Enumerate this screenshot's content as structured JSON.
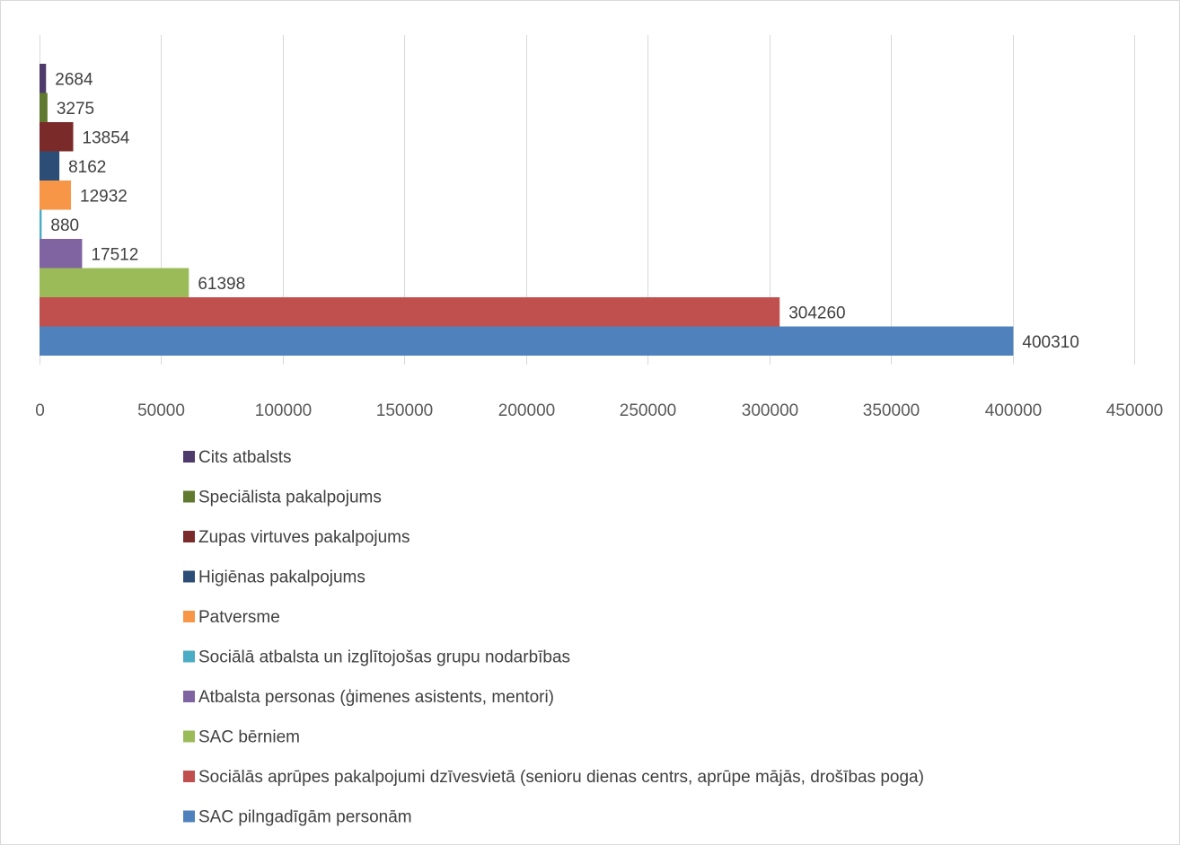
{
  "chart_data": {
    "type": "bar",
    "orientation": "horizontal",
    "grid": true,
    "legend_position": "bottom",
    "xlim": [
      0,
      450000
    ],
    "x_ticks": [
      0,
      50000,
      100000,
      150000,
      200000,
      250000,
      300000,
      350000,
      400000,
      450000
    ],
    "x_tick_labels": [
      "0",
      "50000",
      "100000",
      "150000",
      "200000",
      "250000",
      "300000",
      "350000",
      "400000",
      "450000"
    ],
    "series": [
      {
        "name": "Cits atbalsts",
        "value": 2684,
        "label": "2684",
        "color": "#4e3b6b"
      },
      {
        "name": "Speciālista pakalpojums",
        "value": 3275,
        "label": "3275",
        "color": "#5f7a2e"
      },
      {
        "name": "Zupas virtuves pakalpojums",
        "value": 13854,
        "label": "13854",
        "color": "#7b2a2a"
      },
      {
        "name": "Higiēnas pakalpojums",
        "value": 8162,
        "label": "8162",
        "color": "#2c4d75"
      },
      {
        "name": "Patversme",
        "value": 12932,
        "label": "12932",
        "color": "#f79646"
      },
      {
        "name": "Sociālā atbalsta un izglītojošas grupu nodarbības",
        "value": 880,
        "label": "880",
        "color": "#4bacc6"
      },
      {
        "name": "Atbalsta personas (ģimenes asistents, mentori)",
        "value": 17512,
        "label": "17512",
        "color": "#8064a2"
      },
      {
        "name": "SAC bērniem",
        "value": 61398,
        "label": "61398",
        "color": "#9bbb59"
      },
      {
        "name": "Sociālās aprūpes pakalpojumi dzīvesvietā (senioru dienas centrs, aprūpe mājās, drošības poga)",
        "value": 304260,
        "label": "304260",
        "color": "#c0504d"
      },
      {
        "name": "SAC pilngadīgām personām",
        "value": 400310,
        "label": "400310",
        "color": "#4f81bd"
      }
    ]
  }
}
